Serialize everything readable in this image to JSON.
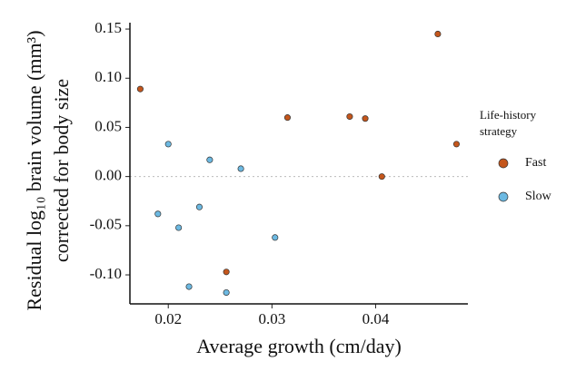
{
  "chart_data": {
    "type": "scatter",
    "x_label": "Average growth (cm/day)",
    "y_label": [
      "Residual log₁₀ brain volume (mm³)",
      "corrected for body size"
    ],
    "legend_title": [
      "Life-history",
      "strategy"
    ],
    "legend": "right",
    "reference_line": 0,
    "xlim": [
      0.0163,
      0.0489
    ],
    "xticks": [
      0.02,
      0.03,
      0.04
    ],
    "ylim": [
      -0.1295,
      0.1565
    ],
    "yticks": [
      {
        "value": 0.15,
        "label": "0.15"
      },
      {
        "value": 0.1,
        "label": "0.10"
      },
      {
        "value": 0.05,
        "label": "0.05"
      },
      {
        "value": 0,
        "label": "0.00"
      },
      {
        "value": -0.05,
        "label": "-0.05"
      },
      {
        "value": -0.1,
        "label": "-0.10"
      }
    ],
    "series": [
      {
        "name": "Fast",
        "color": "#c4561c",
        "x": [
          0.0173,
          0.0315,
          0.0375,
          0.039,
          0.0406,
          0.046,
          0.0478,
          0.0256
        ],
        "values": [
          0.089,
          0.06,
          0.061,
          0.059,
          0.0,
          0.145,
          0.033,
          -0.097
        ]
      },
      {
        "name": "Slow",
        "color": "#6cb9e2",
        "x": [
          0.02,
          0.024,
          0.027,
          0.019,
          0.021,
          0.023,
          0.0303,
          0.022,
          0.0256
        ],
        "values": [
          0.033,
          0.017,
          0.008,
          -0.038,
          -0.052,
          -0.031,
          -0.062,
          -0.112,
          -0.118
        ]
      }
    ]
  }
}
